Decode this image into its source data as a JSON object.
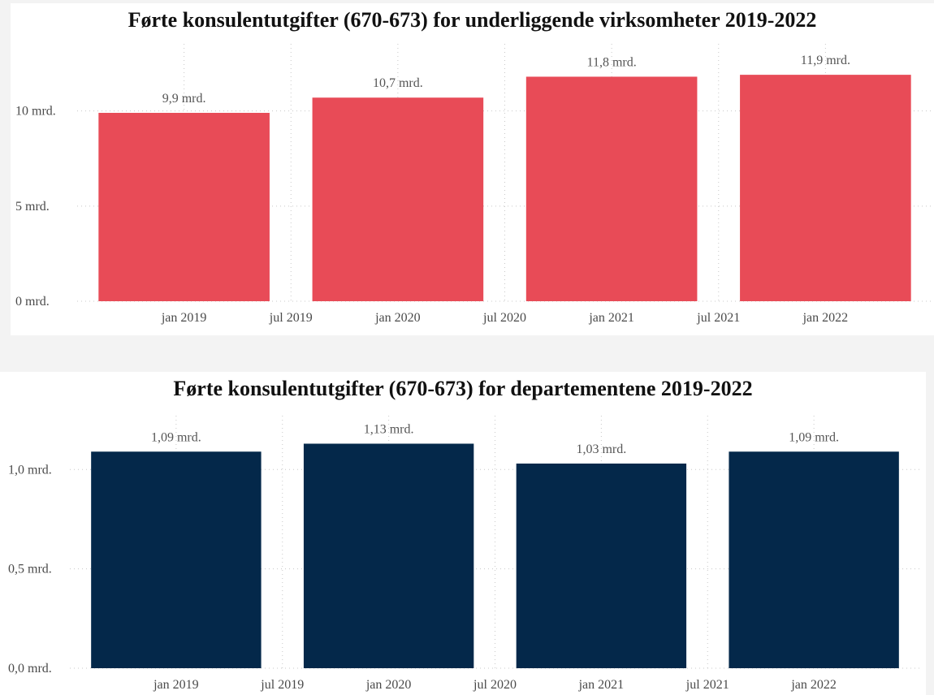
{
  "chart_data": [
    {
      "type": "bar",
      "title": "Førte konsulentutgifter (670-673) for underliggende virksomheter 2019-2022",
      "categories": [
        "2019",
        "2020",
        "2021",
        "2022"
      ],
      "values": [
        9.9,
        10.7,
        11.8,
        11.9
      ],
      "data_labels": [
        "9,9 mrd.",
        "10,7 mrd.",
        "11,8 mrd.",
        "11,9 mrd."
      ],
      "ylim": [
        0,
        13.1
      ],
      "yticks": [
        0,
        5,
        10
      ],
      "ytick_labels": [
        "0 mrd.",
        "5 mrd.",
        "10 mrd."
      ],
      "xtick_labels": [
        "jan 2019",
        "jul 2019",
        "jan 2020",
        "jul 2020",
        "jan 2021",
        "jul 2021",
        "jan 2022"
      ],
      "grid": true,
      "color": "#e84b57"
    },
    {
      "type": "bar",
      "title": "Førte konsulentutgifter (670-673) for departementene 2019-2022",
      "categories": [
        "2019",
        "2020",
        "2021",
        "2022"
      ],
      "values": [
        1.09,
        1.13,
        1.03,
        1.09
      ],
      "data_labels": [
        "1,09 mrd.",
        "1,13 mrd.",
        "1,03 mrd.",
        "1,09 mrd."
      ],
      "ylim": [
        0,
        1.23
      ],
      "yticks": [
        0,
        0.5,
        1.0
      ],
      "ytick_labels": [
        "0,0 mrd.",
        "0,5 mrd.",
        "1,0 mrd."
      ],
      "xtick_labels": [
        "jan 2019",
        "jul 2019",
        "jan 2020",
        "jul 2020",
        "jan 2021",
        "jul 2021",
        "jan 2022"
      ],
      "grid": true,
      "color": "#04284a"
    }
  ]
}
